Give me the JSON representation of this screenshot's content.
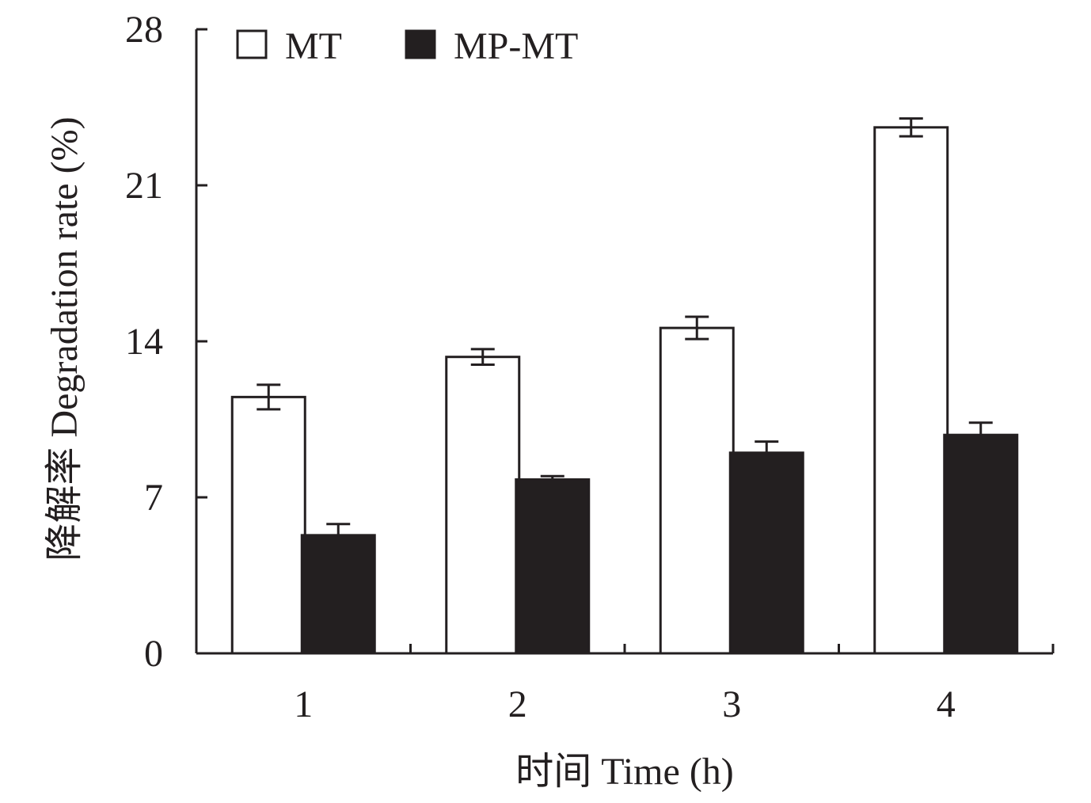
{
  "chart_data": {
    "type": "bar",
    "categories": [
      "1",
      "2",
      "3",
      "4"
    ],
    "series": [
      {
        "name": "MT",
        "values": [
          11.5,
          13.3,
          14.6,
          23.6
        ],
        "errors": [
          0.55,
          0.35,
          0.5,
          0.4
        ],
        "fill": "#ffffff"
      },
      {
        "name": "MP-MT",
        "values": [
          5.3,
          7.8,
          9.0,
          9.8
        ],
        "errors": [
          0.5,
          0.15,
          0.5,
          0.55
        ],
        "fill": "#231f20"
      }
    ],
    "xlabel": "时间 Time (h)",
    "ylabel": "降解率 Degradation rate (%)",
    "ylim": [
      0,
      28
    ],
    "yticks": [
      0,
      7,
      14,
      21,
      28
    ],
    "ytick_labels": [
      "0",
      "7",
      "14",
      "21",
      "28"
    ],
    "legend_position": "top-left",
    "grid": false,
    "colors": {
      "axis": "#231f20",
      "bar_outline": "#231f20"
    }
  }
}
